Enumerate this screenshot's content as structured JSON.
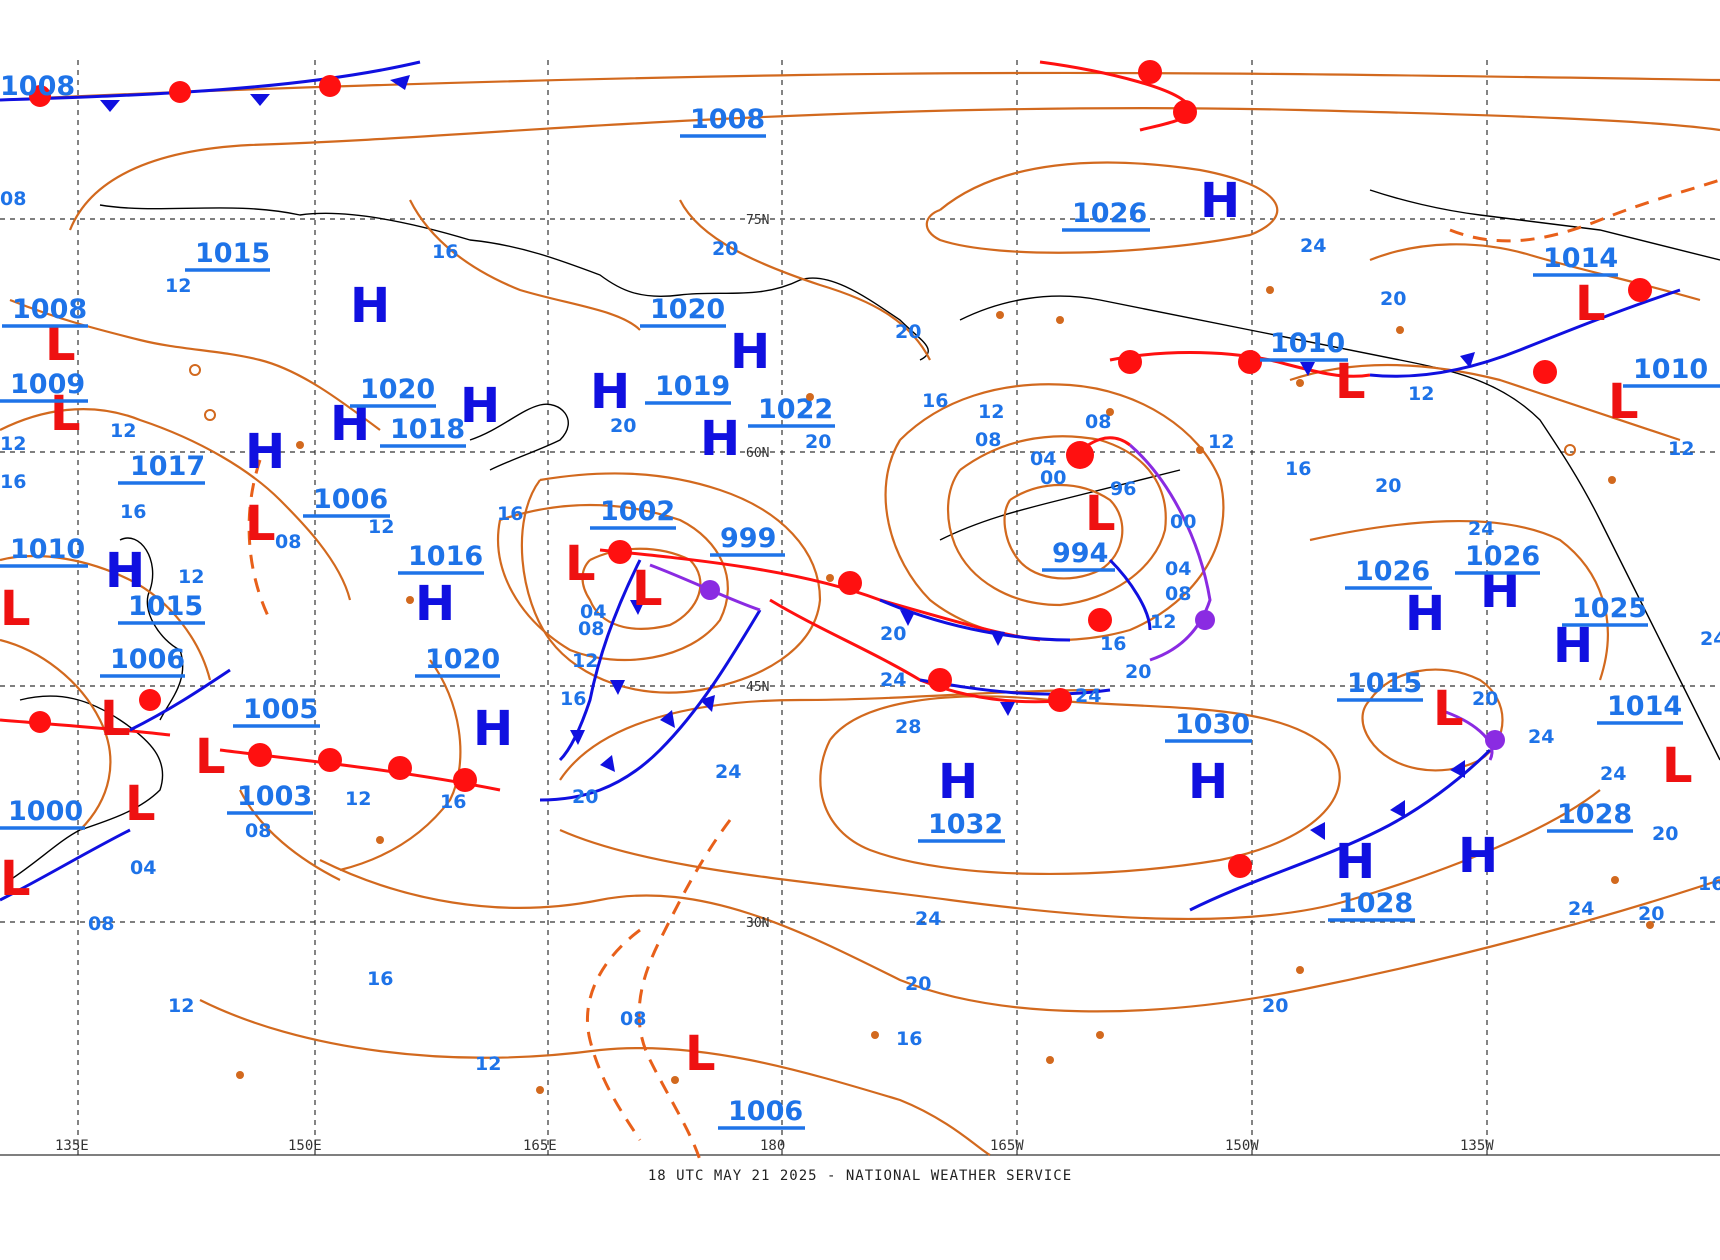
{
  "footer": "18 UTC MAY 21 2025 - NATIONAL WEATHER SERVICE",
  "longitude_labels": [
    "135E",
    "150E",
    "165E",
    "180",
    "165W",
    "150W",
    "135W"
  ],
  "latitude_labels": [
    "75N",
    "60N",
    "45N",
    "30N"
  ],
  "colors": {
    "isobar": "#d2691e",
    "cold_front": "#1010e0",
    "warm_front": "#ff1010",
    "occluded_front": "#8a2be2",
    "high_marker": "#1010e0",
    "low_marker": "#ee1111",
    "isobar_label": "#1e73e8"
  },
  "pressure_centers": [
    {
      "value": "1008",
      "x": 0
    },
    {
      "value": "1015"
    },
    {
      "value": "1008"
    },
    {
      "value": "1009"
    },
    {
      "value": "1017"
    },
    {
      "value": "1010"
    },
    {
      "value": "1015"
    },
    {
      "value": "1006"
    },
    {
      "value": "1000"
    },
    {
      "value": "1005"
    },
    {
      "value": "1003"
    },
    {
      "value": "1020"
    },
    {
      "value": "1018"
    },
    {
      "value": "1006"
    },
    {
      "value": "1016"
    },
    {
      "value": "1020"
    },
    {
      "value": "1020"
    },
    {
      "value": "1019"
    },
    {
      "value": "1022"
    },
    {
      "value": "1008"
    },
    {
      "value": "1002"
    },
    {
      "value": "999"
    },
    {
      "value": "1026"
    },
    {
      "value": "994"
    },
    {
      "value": "1010"
    },
    {
      "value": "1030"
    },
    {
      "value": "1032"
    },
    {
      "value": "1014"
    },
    {
      "value": "1026"
    },
    {
      "value": "1026"
    },
    {
      "value": "1025"
    },
    {
      "value": "1015"
    },
    {
      "value": "1014"
    },
    {
      "value": "1028"
    },
    {
      "value": "1028"
    },
    {
      "value": "1006"
    },
    {
      "value": "1010"
    }
  ],
  "isobar_labels": [
    "08",
    "12",
    "16",
    "20",
    "24",
    "28",
    "00",
    "04",
    "96"
  ],
  "symbols": {
    "high": "H",
    "low": "L"
  }
}
